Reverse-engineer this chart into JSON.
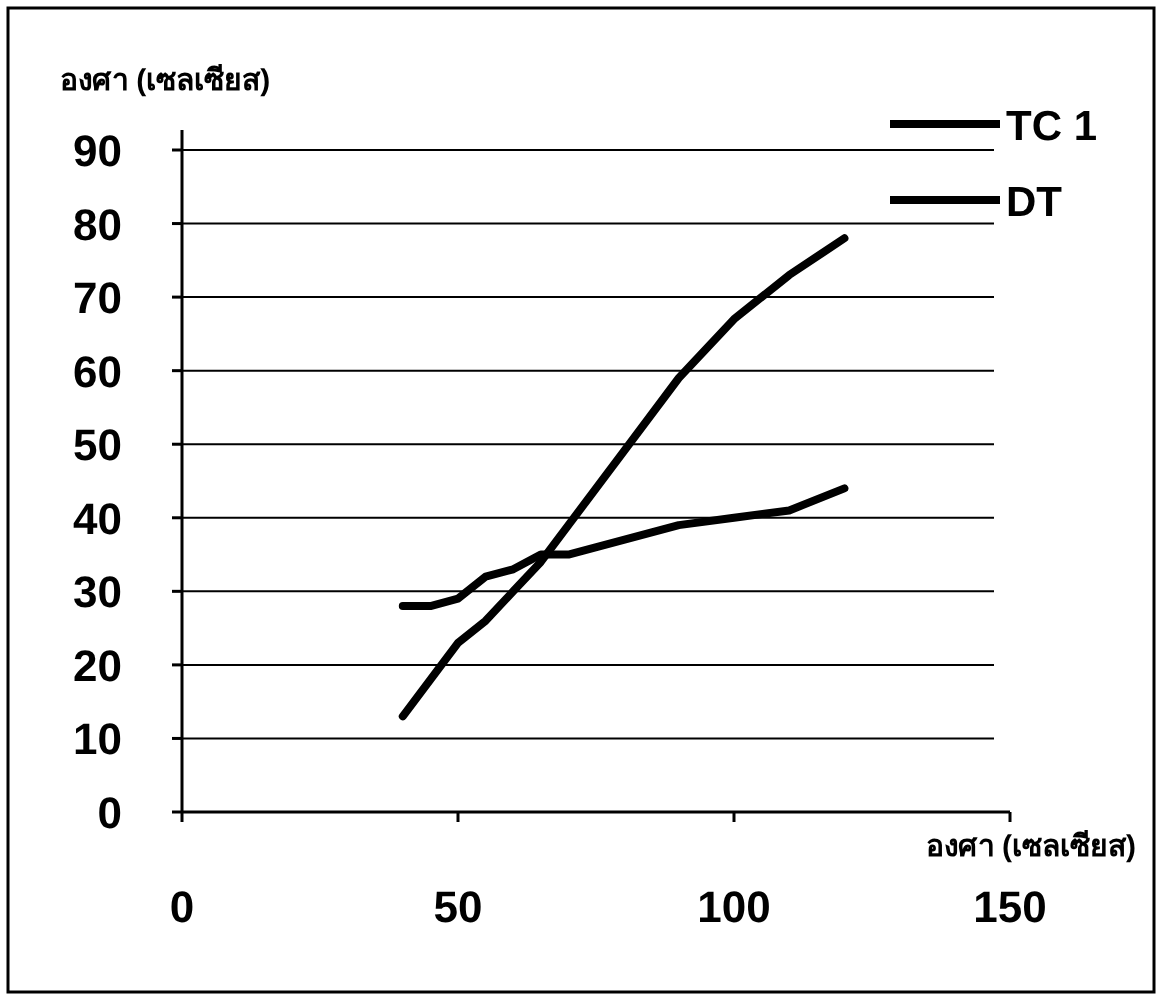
{
  "chart_data": {
    "type": "line",
    "xlabel": "องศา (เซลเซียส)",
    "ylabel": "องศา (เซลเซียส)",
    "xlim": [
      0,
      150
    ],
    "xticks": [
      0,
      50,
      100,
      150
    ],
    "ylim": [
      0,
      90
    ],
    "yticks": [
      0,
      10,
      20,
      30,
      40,
      50,
      60,
      70,
      80,
      90
    ],
    "grid": "y",
    "legend": "top right",
    "line_style": "solid",
    "series": [
      {
        "name": "TC 1",
        "color": "#000000",
        "x": [
          40,
          45,
          50,
          55,
          60,
          65,
          70,
          75,
          80,
          90,
          100,
          110,
          120
        ],
        "values": [
          13,
          18,
          23,
          26,
          30,
          34,
          39,
          44,
          49,
          59,
          67,
          73,
          78
        ]
      },
      {
        "name": "DT",
        "color": "#000000",
        "x": [
          40,
          45,
          50,
          55,
          60,
          65,
          70,
          80,
          90,
          100,
          110,
          120
        ],
        "values": [
          28,
          28,
          29,
          32,
          33,
          35,
          35,
          37,
          39,
          40,
          41,
          44
        ]
      }
    ]
  }
}
